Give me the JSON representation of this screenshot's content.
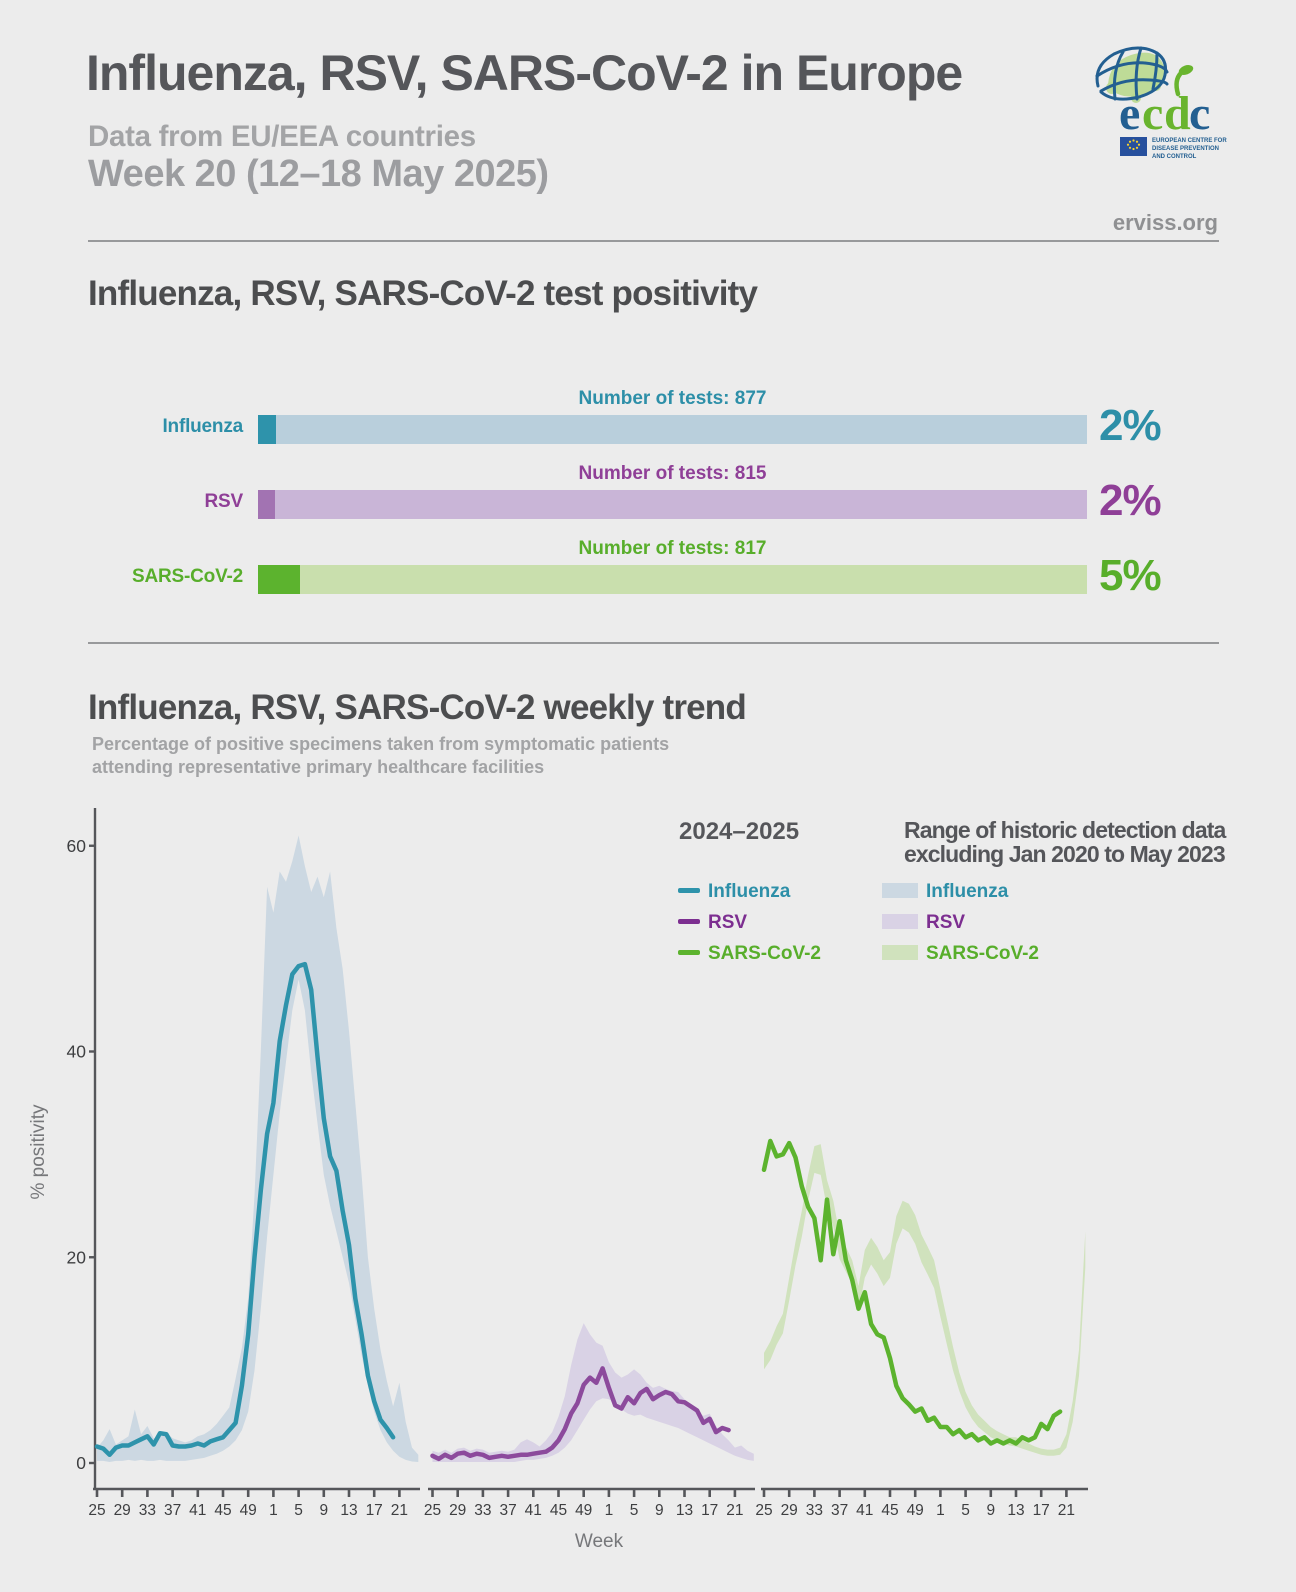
{
  "header": {
    "title": "Influenza, RSV, SARS-CoV-2 in Europe",
    "subtitle": "Data from EU/EEA countries",
    "week_line": "Week 20 (12–18 May 2025)",
    "site": "erviss.org"
  },
  "logo": {
    "wordmark": {
      "e": "e",
      "c1": "c",
      "d": "d",
      "c2": "c"
    },
    "org_lines": [
      "EUROPEAN CENTRE FOR",
      "DISEASE PREVENTION",
      "AND CONTROL"
    ]
  },
  "colors": {
    "background": "#ececec",
    "influenza_strong": "#2e93ab",
    "influenza_text": "#2d8fa8",
    "influenza_band": "#ccd8e2",
    "influenza_bar_light": "#b9cfdc",
    "rsv_strong": "#8c4a9c",
    "rsv_text": "#8f3f97",
    "rsv_band": "#d9d2e5",
    "rsv_bar_light": "#c9b5d7",
    "rsv_bar_seg": "#a273b2",
    "sars_strong": "#5cb32e",
    "sars_text": "#58ae2b",
    "sars_band": "#d0e2bd",
    "sars_bar_light": "#c9dfad",
    "axis": "#55565a",
    "tick_text": "#3e3f41"
  },
  "positivity_section": {
    "heading": "Influenza, RSV, SARS-CoV-2 test positivity",
    "rows": [
      {
        "label": "Influenza",
        "tests_label": "Number of tests: 877",
        "percent": "2%",
        "pct_value": 2.2
      },
      {
        "label": "RSV",
        "tests_label": "Number of tests: 815",
        "percent": "2%",
        "pct_value": 2.0
      },
      {
        "label": "SARS-CoV-2",
        "tests_label": "Number of tests: 817",
        "percent": "5%",
        "pct_value": 5.1
      }
    ]
  },
  "trend_section": {
    "heading": "Influenza, RSV, SARS-CoV-2 weekly trend",
    "subtitle_line1": "Percentage of positive specimens taken from symptomatic patients",
    "subtitle_line2": "attending representative primary healthcare facilities",
    "legend": {
      "season_title": "2024–2025",
      "range_title_line1": "Range of historic detection data",
      "range_title_line2": "excluding Jan 2020 to May 2023",
      "items": [
        {
          "label": "Influenza"
        },
        {
          "label": "RSV"
        },
        {
          "label": "SARS-CoV-2"
        }
      ]
    }
  },
  "chart_data": {
    "type": "line",
    "title": "Influenza, RSV, SARS-CoV-2 weekly trend",
    "ylabel": "% positivity",
    "xlabel": "Week",
    "ylim": [
      0,
      63
    ],
    "yticks": [
      0,
      20,
      40,
      60
    ],
    "xtick_week_labels": [
      "25",
      "29",
      "33",
      "37",
      "41",
      "45",
      "49",
      "1",
      "5",
      "9",
      "13",
      "17",
      "21"
    ],
    "weeks_line": [
      25,
      26,
      27,
      28,
      29,
      30,
      31,
      32,
      33,
      34,
      35,
      36,
      37,
      38,
      39,
      40,
      41,
      42,
      43,
      44,
      45,
      46,
      47,
      48,
      49,
      50,
      51,
      52,
      1,
      2,
      3,
      4,
      5,
      6,
      7,
      8,
      9,
      10,
      11,
      12,
      13,
      14,
      15,
      16,
      17,
      18,
      19,
      20
    ],
    "weeks_band": [
      25,
      26,
      27,
      28,
      29,
      30,
      31,
      32,
      33,
      34,
      35,
      36,
      37,
      38,
      39,
      40,
      41,
      42,
      43,
      44,
      45,
      46,
      47,
      48,
      49,
      50,
      51,
      52,
      1,
      2,
      3,
      4,
      5,
      6,
      7,
      8,
      9,
      10,
      11,
      12,
      13,
      14,
      15,
      16,
      17,
      18,
      19,
      20,
      21,
      22,
      23,
      24
    ],
    "series": [
      {
        "name": "Influenza 2024–2025",
        "values": [
          1.6,
          1.4,
          0.8,
          1.5,
          1.7,
          1.7,
          2.0,
          2.3,
          2.6,
          1.8,
          2.9,
          2.8,
          1.7,
          1.6,
          1.6,
          1.7,
          1.9,
          1.7,
          2.1,
          2.3,
          2.5,
          3.2,
          3.9,
          7.5,
          12.5,
          20,
          26.5,
          32,
          35,
          41,
          44.5,
          47.5,
          48.3,
          48.5,
          46,
          39.5,
          33.5,
          29.8,
          28.4,
          24.5,
          21.2,
          16,
          12.5,
          8.5,
          6,
          4.2,
          3.4,
          2.5
        ]
      },
      {
        "name": "RSV 2024–2025",
        "values": [
          0.7,
          0.4,
          0.8,
          0.5,
          0.9,
          1.0,
          0.7,
          0.9,
          0.8,
          0.5,
          0.6,
          0.7,
          0.6,
          0.7,
          0.8,
          0.8,
          0.9,
          1.0,
          1.1,
          1.5,
          2.2,
          3.3,
          4.8,
          5.8,
          7.6,
          8.3,
          7.8,
          9.2,
          7.3,
          5.6,
          5.3,
          6.4,
          5.8,
          6.8,
          7.2,
          6.2,
          6.6,
          6.9,
          6.7,
          6.0,
          5.9,
          5.5,
          5.1,
          3.9,
          4.3,
          3.0,
          3.4,
          3.2
        ]
      },
      {
        "name": "SARS-CoV-2 2024–2025",
        "values": [
          28.5,
          31.3,
          29.8,
          30.0,
          31.1,
          29.7,
          26.9,
          24.9,
          23.8,
          19.7,
          25.6,
          20.3,
          23.5,
          19.7,
          17.8,
          15.0,
          16.6,
          13.5,
          12.5,
          12.2,
          10.2,
          7.5,
          6.3,
          5.7,
          5.0,
          5.3,
          4.1,
          4.4,
          3.5,
          3.5,
          2.8,
          3.2,
          2.5,
          2.8,
          2.2,
          2.5,
          1.9,
          2.2,
          1.9,
          2.2,
          1.9,
          2.5,
          2.2,
          2.5,
          3.8,
          3.3,
          4.6,
          5.0
        ]
      }
    ],
    "bands": [
      {
        "name": "Influenza historic range",
        "upper": [
          1.5,
          2.2,
          3.3,
          1.8,
          2.2,
          2.6,
          5.2,
          2.8,
          3.6,
          2.4,
          2.6,
          3.0,
          2.4,
          2.2,
          2.0,
          2.2,
          2.6,
          2.8,
          3.2,
          3.8,
          4.6,
          5.4,
          8.2,
          11.2,
          16,
          26,
          40,
          56,
          53.5,
          57.5,
          56.5,
          58.5,
          61,
          58,
          55.5,
          57,
          55,
          57.5,
          52,
          48,
          42,
          35,
          28,
          20,
          15,
          11,
          8,
          5.5,
          7.8,
          4,
          1.5,
          0.8
        ],
        "lower": [
          0.2,
          0.2,
          0.1,
          0.2,
          0.2,
          0.3,
          0.2,
          0.3,
          0.2,
          0.2,
          0.3,
          0.2,
          0.2,
          0.2,
          0.2,
          0.3,
          0.4,
          0.5,
          0.7,
          0.9,
          1.2,
          1.6,
          2.2,
          3.2,
          5,
          9,
          15,
          22,
          28,
          34,
          39,
          44,
          47,
          44,
          38,
          33,
          28,
          25,
          22.5,
          20,
          17.5,
          14,
          10.5,
          7.5,
          5,
          3.2,
          2,
          1.2,
          0.6,
          0.3,
          0.15,
          0.1
        ]
      },
      {
        "name": "RSV historic range",
        "upper": [
          1.2,
          1.0,
          1.3,
          1.0,
          1.4,
          1.5,
          1.2,
          1.4,
          1.3,
          1.0,
          1.1,
          1.2,
          1.1,
          1.3,
          2.0,
          2.3,
          2.0,
          1.6,
          2.2,
          3.0,
          4.5,
          6.5,
          9.5,
          12.0,
          13.6,
          12.5,
          11.7,
          11.4,
          9.8,
          8.8,
          8.3,
          8.6,
          9.1,
          8.6,
          7.8,
          7.3,
          7.5,
          7.2,
          7.0,
          6.9,
          6.2,
          5.7,
          4.9,
          4.6,
          4.8,
          3.6,
          2.8,
          2.2,
          1.5,
          1.7,
          1.2,
          0.9
        ],
        "lower": [
          0.1,
          0.1,
          0.1,
          0.1,
          0.1,
          0.1,
          0.1,
          0.1,
          0.1,
          0.1,
          0.1,
          0.1,
          0.1,
          0.1,
          0.2,
          0.3,
          0.3,
          0.4,
          0.5,
          0.7,
          1.0,
          1.5,
          2.2,
          3.2,
          4.2,
          5.2,
          6.0,
          6.3,
          6.2,
          5.8,
          5.2,
          4.8,
          4.6,
          4.7,
          4.4,
          4.2,
          4.0,
          3.8,
          3.6,
          3.4,
          3.1,
          2.8,
          2.5,
          2.2,
          1.9,
          1.6,
          1.3,
          1.0,
          0.7,
          0.5,
          0.3,
          0.2
        ]
      },
      {
        "name": "SARS-CoV-2 historic range",
        "upper": [
          10.7,
          11.8,
          13.3,
          14.5,
          18.0,
          21.5,
          24.5,
          28.0,
          30.8,
          31.0,
          27.5,
          25.5,
          22.2,
          21.0,
          19.7,
          17.2,
          20.7,
          21.9,
          21.0,
          19.7,
          20.5,
          24.0,
          25.5,
          25.2,
          24.1,
          22.2,
          21.0,
          19.7,
          16.9,
          14.1,
          11.3,
          8.8,
          6.9,
          5.6,
          4.7,
          4.1,
          3.5,
          3.1,
          2.8,
          2.5,
          2.5,
          2.2,
          1.9,
          1.6,
          1.4,
          1.3,
          1.3,
          1.5,
          2.8,
          6.0,
          11.0,
          22.5
        ],
        "lower": [
          9.1,
          10.0,
          11.5,
          12.6,
          15.8,
          19.2,
          22.0,
          25.5,
          28.2,
          28.0,
          24.8,
          23.0,
          19.8,
          18.6,
          17.4,
          14.8,
          18.0,
          19.3,
          18.4,
          17.2,
          18.0,
          21.3,
          22.8,
          22.4,
          21.3,
          19.5,
          18.3,
          17.0,
          14.2,
          11.6,
          9.0,
          7.0,
          5.4,
          4.3,
          3.5,
          3.0,
          2.5,
          2.2,
          1.9,
          1.7,
          1.6,
          1.4,
          1.2,
          1.0,
          0.8,
          0.7,
          0.7,
          0.8,
          1.5,
          4.0,
          8.5,
          19.0
        ]
      }
    ],
    "legend_position": "top-right",
    "grid": false
  }
}
